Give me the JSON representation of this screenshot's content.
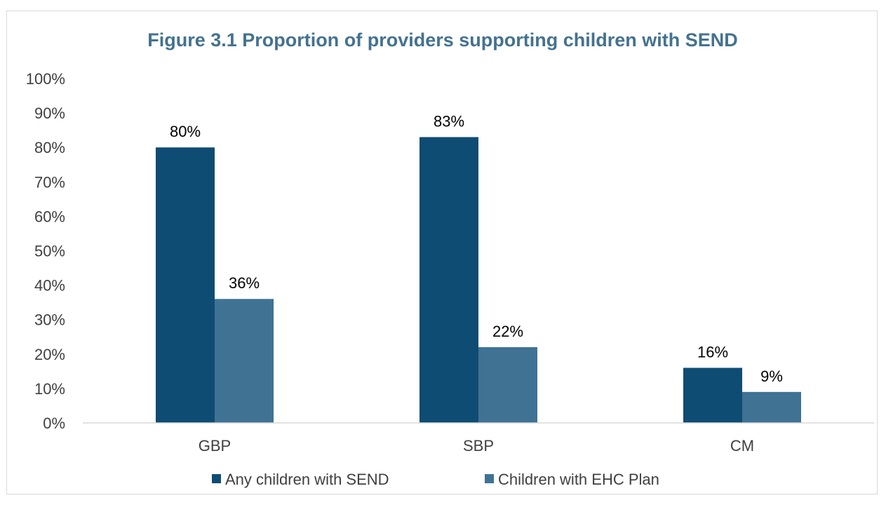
{
  "chart_data": {
    "type": "bar",
    "title": "Figure 3.1 Proportion of providers supporting children with SEND",
    "xlabel": "",
    "ylabel": "",
    "categories": [
      "GBP",
      "SBP",
      "CM"
    ],
    "series": [
      {
        "name": "Any children with SEND",
        "values": [
          80,
          83,
          16
        ],
        "labels": [
          "80%",
          "83%",
          "16%"
        ],
        "color": "#0f4c73"
      },
      {
        "name": "Children with EHC Plan",
        "values": [
          36,
          22,
          9
        ],
        "labels": [
          "36%",
          "22%",
          "9%"
        ],
        "color": "#3f7293"
      }
    ],
    "ylim": [
      0,
      100
    ],
    "yticks": [
      "0%",
      "10%",
      "20%",
      "30%",
      "40%",
      "50%",
      "60%",
      "70%",
      "80%",
      "90%",
      "100%"
    ],
    "grid": false,
    "legend_position": "bottom"
  }
}
